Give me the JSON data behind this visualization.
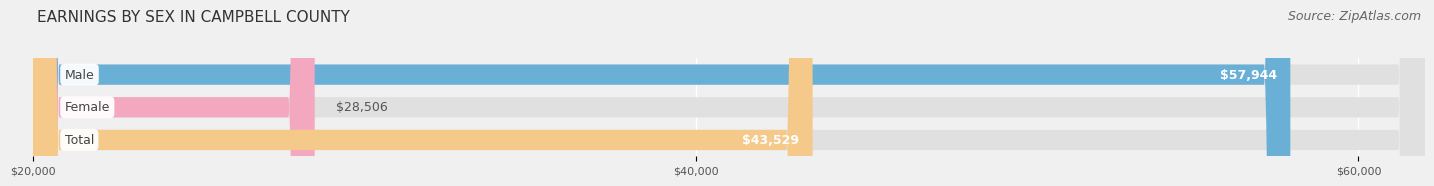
{
  "title": "EARNINGS BY SEX IN CAMPBELL COUNTY",
  "source": "Source: ZipAtlas.com",
  "categories": [
    "Male",
    "Female",
    "Total"
  ],
  "values": [
    57944,
    28506,
    43529
  ],
  "colors": [
    "#6aafd6",
    "#f4a8c0",
    "#f5c98a"
  ],
  "bar_labels": [
    "$57,944",
    "$28,506",
    "$43,529"
  ],
  "xmin": 20000,
  "xmax": 62000,
  "xticks": [
    20000,
    40000,
    60000
  ],
  "xtick_labels": [
    "$20,000",
    "$40,000",
    "$60,000"
  ],
  "title_fontsize": 11,
  "source_fontsize": 9,
  "value_fontsize": 9,
  "cat_fontsize": 9,
  "bar_height": 0.62,
  "background_color": "#f0f0f0",
  "bar_bg_color": "#e0e0e0",
  "label_text_color": "#555555",
  "value_in_color": "white",
  "cat_label_color": "#444444",
  "grid_color": "#cccccc"
}
